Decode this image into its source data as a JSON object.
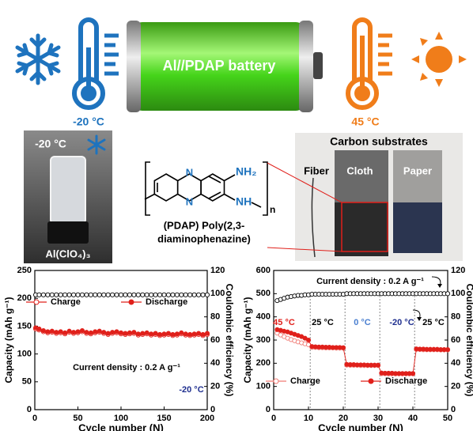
{
  "header": {
    "battery_label": "Al//PDAP battery",
    "cold_temp": "-20 °C",
    "hot_temp": "45 °C"
  },
  "photo_left": {
    "temp": "-20 °C",
    "label": "Al(ClO₄)₃"
  },
  "structure": {
    "atoms": [
      "N",
      "N",
      "NH₂",
      "NH",
      "n"
    ],
    "caption": [
      "(PDAP) Poly(2,3-",
      "diaminophenazine)"
    ]
  },
  "photo_right": {
    "title": "Carbon substrates",
    "labels": [
      "Fiber",
      "Cloth",
      "Paper"
    ]
  },
  "chart_data": [
    {
      "type": "line",
      "xlabel": "Cycle number (N)",
      "ylabel": "Capacity (mAh g⁻¹)",
      "y2label": "Coulombic efficiency (%)",
      "xlim": [
        0,
        200
      ],
      "xticks": [
        0,
        50,
        100,
        150,
        200
      ],
      "ylim": [
        0,
        250
      ],
      "yticks": [
        0,
        50,
        100,
        150,
        200,
        250
      ],
      "y2lim": [
        0,
        120
      ],
      "y2ticks": [
        0,
        20,
        40,
        60,
        80,
        100,
        120
      ],
      "legend": "upper center",
      "x": [
        1,
        5,
        10,
        15,
        20,
        25,
        30,
        35,
        40,
        45,
        50,
        55,
        60,
        65,
        70,
        75,
        80,
        85,
        90,
        95,
        100,
        105,
        110,
        115,
        120,
        125,
        130,
        135,
        140,
        145,
        150,
        155,
        160,
        165,
        170,
        175,
        180,
        185,
        190,
        195,
        200
      ],
      "series": [
        {
          "name": "Charge",
          "color": "#e0201b",
          "marker": "open",
          "values": [
            145,
            143,
            140,
            138,
            139,
            137,
            138,
            136,
            139,
            137,
            138,
            140,
            137,
            136,
            138,
            139,
            137,
            135,
            137,
            138,
            136,
            135,
            136,
            137,
            134,
            135,
            136,
            134,
            135,
            133,
            134,
            135,
            133,
            134,
            136,
            134,
            133,
            134,
            135,
            133,
            135
          ]
        },
        {
          "name": "Discharge",
          "color": "#e0201b",
          "marker": "filled",
          "values": [
            147,
            145,
            142,
            140,
            141,
            139,
            140,
            138,
            141,
            139,
            140,
            142,
            139,
            138,
            140,
            141,
            139,
            137,
            139,
            140,
            138,
            137,
            138,
            139,
            136,
            137,
            138,
            136,
            137,
            135,
            136,
            137,
            135,
            136,
            138,
            136,
            135,
            136,
            137,
            135,
            137
          ]
        },
        {
          "color": "#000000",
          "marker": "open",
          "axis": "y2",
          "values": [
            99,
            99,
            99,
            99,
            99,
            99,
            99,
            99,
            99,
            99,
            99,
            99,
            99,
            99,
            99,
            99,
            99,
            99,
            99,
            99,
            99,
            99,
            99,
            99,
            99,
            99,
            99,
            99,
            99,
            99,
            99,
            99,
            99,
            99,
            99,
            99,
            99,
            99,
            99,
            99,
            99
          ]
        }
      ],
      "annotations": [
        {
          "text": "Current density : 0.2 A g⁻¹",
          "color": "#000000"
        },
        {
          "text": "-20 °C",
          "color": "#1f2f8f"
        }
      ]
    },
    {
      "type": "line",
      "xlabel": "Cycle number (N)",
      "ylabel": "Capacity (mAh g⁻¹)",
      "y2label": "Coulombic efficiency (%)",
      "xlim": [
        0,
        50
      ],
      "xticks": [
        0,
        10,
        20,
        30,
        40,
        50
      ],
      "ylim": [
        0,
        600
      ],
      "yticks": [
        0,
        100,
        200,
        300,
        400,
        500,
        600
      ],
      "y2lim": [
        0,
        120
      ],
      "y2ticks": [
        0,
        20,
        40,
        60,
        80,
        100,
        120
      ],
      "legend": "lower center",
      "x": [
        1,
        2,
        3,
        4,
        5,
        6,
        7,
        8,
        9,
        10,
        11,
        12,
        13,
        14,
        15,
        16,
        17,
        18,
        19,
        20,
        21,
        22,
        23,
        24,
        25,
        26,
        27,
        28,
        29,
        30,
        31,
        32,
        33,
        34,
        35,
        36,
        37,
        38,
        39,
        40,
        41,
        42,
        43,
        44,
        45,
        46,
        47,
        48,
        49,
        50
      ],
      "series": [
        {
          "name": "Charge",
          "color": "#f07a74",
          "marker": "open",
          "values": [
            330,
            322,
            315,
            308,
            302,
            297,
            292,
            288,
            284,
            280,
            268,
            268,
            267,
            267,
            266,
            266,
            266,
            265,
            265,
            265,
            192,
            191,
            191,
            191,
            190,
            190,
            190,
            190,
            190,
            190,
            155,
            155,
            154,
            154,
            154,
            154,
            154,
            154,
            154,
            154,
            259,
            259,
            258,
            258,
            258,
            258,
            258,
            257,
            257,
            257
          ]
        },
        {
          "name": "Discharge",
          "color": "#e0201b",
          "marker": "filled",
          "values": [
            345,
            342,
            338,
            335,
            330,
            325,
            320,
            315,
            308,
            300,
            272,
            271,
            270,
            270,
            269,
            269,
            268,
            268,
            268,
            267,
            195,
            194,
            194,
            193,
            193,
            193,
            192,
            192,
            192,
            192,
            158,
            157,
            157,
            157,
            156,
            156,
            156,
            156,
            156,
            156,
            262,
            261,
            261,
            260,
            260,
            260,
            260,
            259,
            259,
            259
          ]
        },
        {
          "color": "#000000",
          "marker": "open",
          "axis": "y2",
          "values": [
            94,
            95,
            96,
            97,
            97.5,
            98,
            98.5,
            98.5,
            99,
            99,
            99.5,
            99.5,
            99.5,
            99.5,
            99.5,
            99.5,
            99.5,
            99.5,
            99.5,
            99.5,
            100,
            100,
            100,
            100,
            100,
            100,
            100,
            100,
            100,
            100,
            100,
            100,
            100,
            100,
            100,
            100,
            100,
            100,
            100,
            100,
            100,
            100,
            100,
            100,
            100,
            100,
            100,
            100,
            100,
            100
          ]
        }
      ],
      "annotations": [
        {
          "text": "Current density : 0.2 A g⁻¹",
          "color": "#000000"
        },
        {
          "text": "45 °C",
          "color": "#e0201b"
        },
        {
          "text": "25 °C",
          "color": "#000000"
        },
        {
          "text": "0 °C",
          "color": "#4a7fd0"
        },
        {
          "text": "-20 °C",
          "color": "#1f2f8f"
        },
        {
          "text": "25 °C",
          "color": "#000000"
        }
      ]
    }
  ]
}
